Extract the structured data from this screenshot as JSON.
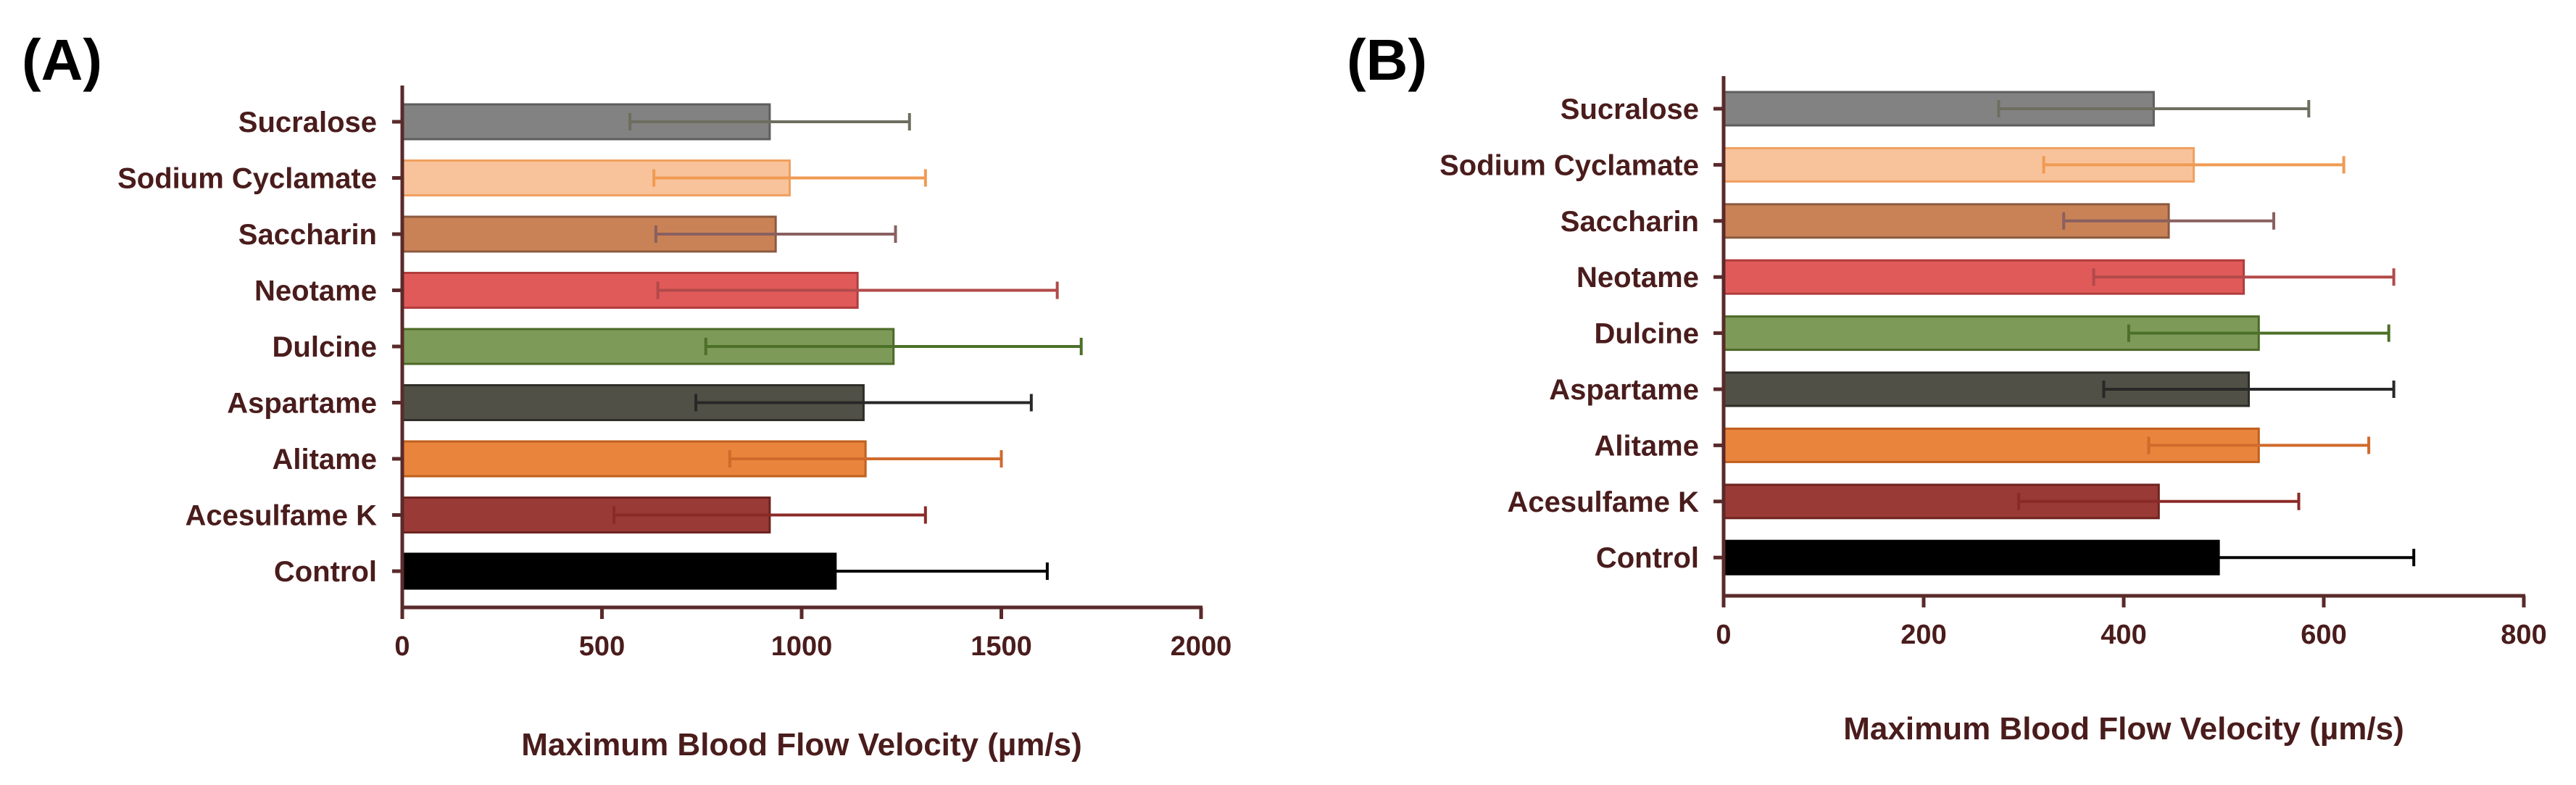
{
  "colors": {
    "axis": "#5a2a2a",
    "label": "#4a1c1c",
    "series": {
      "Sucralose": {
        "fill": "#828282",
        "edge": "#5e5e5e",
        "err": "#6e6e60"
      },
      "Sodium Cyclamate": {
        "fill": "#f8c39a",
        "edge": "#f0a060",
        "err": "#f09a52"
      },
      "Saccharin": {
        "fill": "#c98256",
        "edge": "#8c5a40",
        "err": "#8a6060"
      },
      "Neotame": {
        "fill": "#e15a5a",
        "edge": "#b23c3c",
        "err": "#b24a4a"
      },
      "Dulcine": {
        "fill": "#7e9a58",
        "edge": "#4d6a28",
        "err": "#4d7028"
      },
      "Aspartame": {
        "fill": "#505046",
        "edge": "#2e2e28",
        "err": "#282828"
      },
      "Alitame": {
        "fill": "#e8843c",
        "edge": "#c0601e",
        "err": "#d06a2c"
      },
      "Acesulfame K": {
        "fill": "#9a3a36",
        "edge": "#6e2420",
        "err": "#8a2a26"
      },
      "Control": {
        "fill": "#000000",
        "edge": "#000000",
        "err": "#000000"
      }
    }
  },
  "chart_data": [
    {
      "panel": "(A)",
      "type": "bar",
      "orientation": "horizontal",
      "xlabel": "Maximum Blood Flow Velocity (µm/s)",
      "xlim": [
        0,
        2000
      ],
      "xticks": [
        0,
        500,
        1000,
        1500,
        2000
      ],
      "xtick_labels": [
        "0",
        "500",
        "1000",
        "1500",
        "2000"
      ],
      "categories": [
        "Sucralose",
        "Sodium Cyclamate",
        "Saccharin",
        "Neotame",
        "Dulcine",
        "Aspartame",
        "Alitame",
        "Acesulfame K",
        "Control"
      ],
      "values": [
        920,
        970,
        935,
        1140,
        1230,
        1155,
        1160,
        920,
        1085
      ],
      "error": [
        350,
        340,
        300,
        500,
        470,
        420,
        340,
        390,
        530
      ]
    },
    {
      "panel": "(B)",
      "type": "bar",
      "orientation": "horizontal",
      "xlabel": "Maximum Blood Flow Velocity (µm/s)",
      "xlim": [
        0,
        800
      ],
      "xticks": [
        0,
        200,
        400,
        600,
        800
      ],
      "xtick_labels": [
        "0",
        "200",
        "400",
        "600",
        "800"
      ],
      "categories": [
        "Sucralose",
        "Sodium Cyclamate",
        "Saccharin",
        "Neotame",
        "Dulcine",
        "Aspartame",
        "Alitame",
        "Acesulfame K",
        "Control"
      ],
      "values": [
        430,
        470,
        445,
        520,
        535,
        525,
        535,
        435,
        495
      ],
      "error": [
        155,
        150,
        105,
        150,
        130,
        145,
        110,
        140,
        195
      ]
    }
  ]
}
